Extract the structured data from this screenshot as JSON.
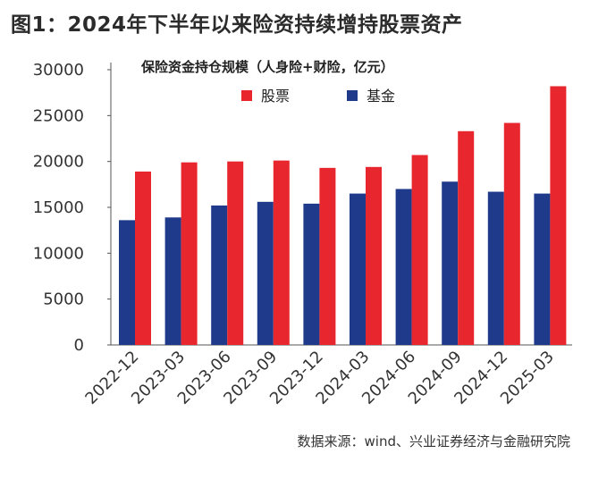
{
  "figure_title": "图1：2024年下半年以来险资持续增持股票资产",
  "source_note": "数据来源：wind、兴业证券经济与金融研究院",
  "colors": {
    "stock": "#e8262d",
    "fund": "#1f3a8a",
    "axis": "#555555"
  },
  "chart_data": {
    "type": "bar",
    "title": "保险资金持仓规模（人身险+财险，亿元）",
    "categories": [
      "2022-12",
      "2023-03",
      "2023-06",
      "2023-09",
      "2023-12",
      "2024-03",
      "2024-06",
      "2024-09",
      "2024-12",
      "2025-03"
    ],
    "series": [
      {
        "name": "股票",
        "values": [
          18900,
          19900,
          20000,
          20100,
          19300,
          19400,
          20700,
          23300,
          24200,
          28200
        ]
      },
      {
        "name": "基金",
        "values": [
          13600,
          13900,
          15200,
          15600,
          15400,
          16500,
          17000,
          17800,
          16700,
          16500
        ]
      }
    ],
    "ylim": [
      0,
      30000
    ],
    "yticks": [
      0,
      5000,
      10000,
      15000,
      20000,
      25000,
      30000
    ],
    "legend_position": "top-left",
    "grid": false
  }
}
